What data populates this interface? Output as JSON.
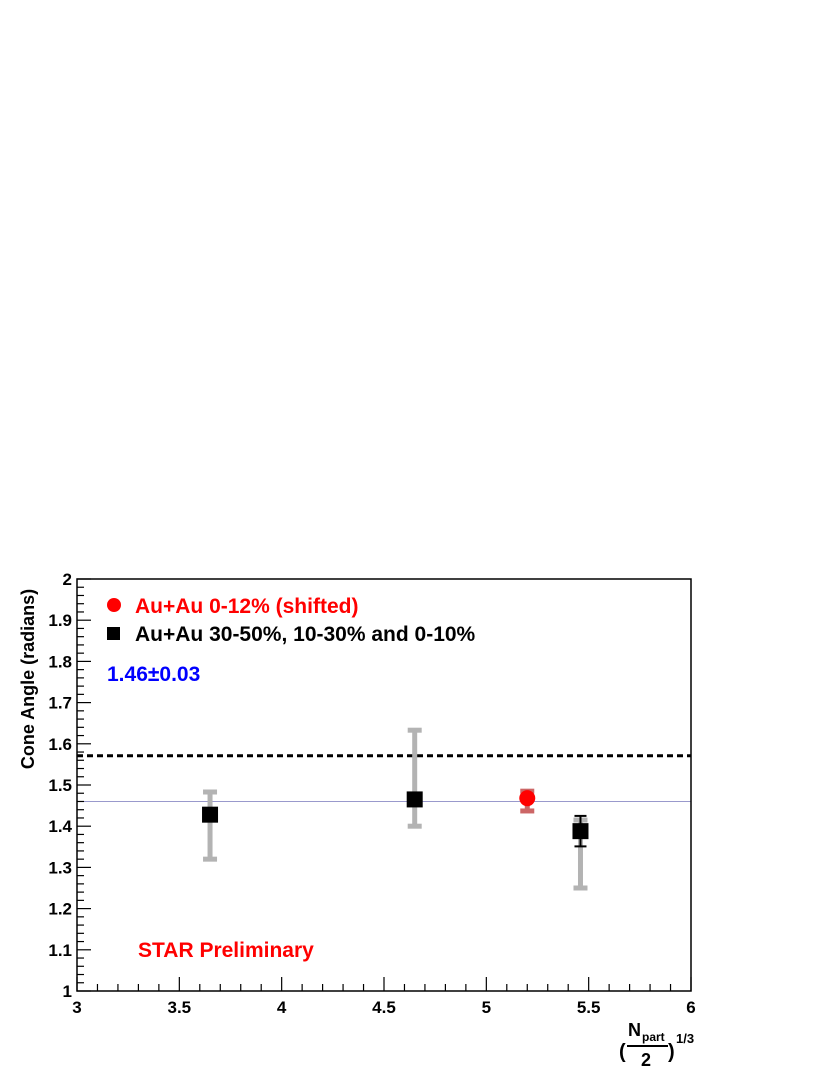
{
  "chart_data": {
    "type": "scatter",
    "xlabel": {
      "numerator_main": "N",
      "numerator_sub": "part",
      "denominator": "2",
      "open_paren": "(",
      "close_paren": ")",
      "exponent": "1/3"
    },
    "ylabel": "Cone Angle (radians)",
    "xlim": [
      3,
      6
    ],
    "ylim": [
      1,
      2
    ],
    "x_ticks": [
      "3",
      "3.5",
      "4",
      "4.5",
      "5",
      "5.5",
      "6"
    ],
    "y_ticks": [
      "1",
      "1.1",
      "1.2",
      "1.3",
      "1.4",
      "1.5",
      "1.6",
      "1.7",
      "1.8",
      "1.9",
      "2"
    ],
    "grid": false,
    "legend_placement": "top-left",
    "series": [
      {
        "name": "Au+Au 0-12% (shifted)",
        "marker": "circle",
        "color": "#ff0000",
        "sys_color": "#cc6666",
        "points": [
          {
            "x": 5.2,
            "y": 1.468,
            "stat_err": 0.012,
            "sys_lo": 1.437,
            "sys_hi": 1.485
          }
        ]
      },
      {
        "name": "Au+Au 30-50%, 10-30% and 0-10%",
        "marker": "square",
        "color": "#000000",
        "sys_color": "#b3b3b3",
        "points": [
          {
            "x": 3.65,
            "y": 1.428,
            "stat_err": 0.012,
            "sys_lo": 1.32,
            "sys_hi": 1.483
          },
          {
            "x": 4.65,
            "y": 1.465,
            "stat_err": 0.01,
            "sys_lo": 1.4,
            "sys_hi": 1.633
          },
          {
            "x": 5.46,
            "y": 1.388,
            "stat_err": 0.037,
            "sys_lo": 1.25,
            "sys_hi": 1.415
          }
        ]
      }
    ],
    "reference_lines": [
      {
        "y": 1.571,
        "style": "dashed",
        "color": "#000000"
      },
      {
        "y": 1.46,
        "style": "solid",
        "color": "#9999cc"
      }
    ],
    "annotations": {
      "fit_value": {
        "text": "1.46±0.03",
        "color": "#0000ff"
      },
      "preliminary": {
        "text": "STAR Preliminary",
        "color": "#ff0000"
      }
    }
  }
}
